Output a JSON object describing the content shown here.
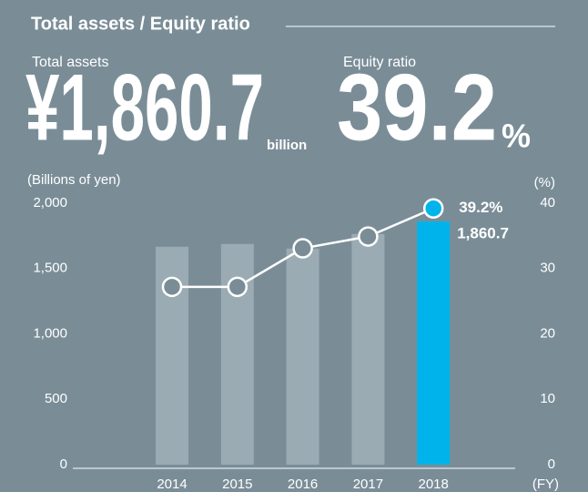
{
  "chart_data": {
    "type": "bar-line",
    "title": "Total assets / Equity ratio",
    "headline": {
      "assets_label": "Total assets",
      "assets_value": "¥1,860.7",
      "assets_unit": "billion",
      "ratio_label": "Equity ratio",
      "ratio_value": "39.2",
      "ratio_unit": "%"
    },
    "y_label": "(Billions of yen)",
    "y2_label": "(%)",
    "x_label": "(FY)",
    "categories": [
      "2014",
      "2015",
      "2016",
      "2017",
      "2018"
    ],
    "ylim": [
      0,
      2000
    ],
    "yticks": [
      0,
      500,
      {
        "value": 1000,
        "label": "1,000"
      },
      {
        "value": 1500,
        "label": "1,500"
      },
      {
        "value": 2000,
        "label": "2,000"
      }
    ],
    "y2lim": [
      0,
      40
    ],
    "y2ticks": [
      0,
      10,
      20,
      30,
      40
    ],
    "series": [
      {
        "name": "Total assets",
        "type": "bar",
        "colors": [
          "#9aabb3",
          "#9aabb3",
          "#9aabb3",
          "#9aabb3",
          "#00b4eb"
        ],
        "values": [
          1667,
          1688,
          1653,
          1764,
          1860.7
        ],
        "value_labels": [
          null,
          null,
          null,
          null,
          "1,860.7"
        ]
      },
      {
        "name": "Equity ratio",
        "type": "line",
        "axis": "y2",
        "color": "#ffffff",
        "last_marker_color": "#00b4eb",
        "values": [
          27.2,
          27.2,
          33.1,
          34.9,
          39.2
        ],
        "value_labels": [
          null,
          null,
          null,
          null,
          "39.2%"
        ]
      }
    ]
  }
}
